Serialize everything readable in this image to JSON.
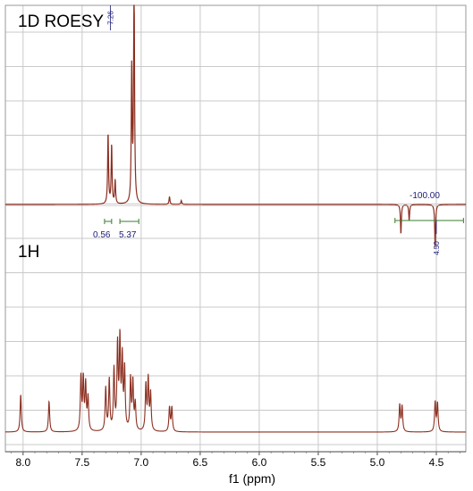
{
  "chart_data": [
    {
      "type": "line",
      "title": "1D ROESY",
      "xlabel": "f1 (ppm)",
      "x_range": [
        8.15,
        4.25
      ],
      "x_ticks": [
        "8.0",
        "7.5",
        "7.0",
        "6.5",
        "6.0",
        "5.5",
        "5.0",
        "4.5"
      ],
      "x_reversed": true,
      "grid": true,
      "peaks": [
        {
          "ppm": 7.28,
          "height": 0.36
        },
        {
          "ppm": 7.25,
          "height": 0.3
        },
        {
          "ppm": 7.22,
          "height": 0.12
        },
        {
          "ppm": 7.08,
          "height": 0.68
        },
        {
          "ppm": 7.06,
          "height": 1.2
        },
        {
          "ppm": 6.76,
          "height": 0.04
        },
        {
          "ppm": 6.66,
          "height": 0.02
        },
        {
          "ppm": 4.8,
          "height": -0.15
        },
        {
          "ppm": 4.73,
          "height": -0.08
        },
        {
          "ppm": 4.51,
          "height": -0.22
        }
      ],
      "peak_labels": [
        {
          "ppm": 7.26,
          "text": "7.26"
        },
        {
          "ppm": 4.5,
          "text": "4.50"
        }
      ],
      "integrals": [
        {
          "ppm": 7.28,
          "text": "0.56"
        },
        {
          "ppm": 7.1,
          "text": "5.37"
        },
        {
          "ppm": 4.55,
          "text": "-100.00"
        }
      ]
    },
    {
      "type": "line",
      "title": "1H",
      "xlabel": "f1 (ppm)",
      "peaks": [
        {
          "ppm": 8.02,
          "height": 0.28
        },
        {
          "ppm": 7.78,
          "height": 0.23
        },
        {
          "ppm": 7.51,
          "height": 0.4
        },
        {
          "ppm": 7.49,
          "height": 0.38
        },
        {
          "ppm": 7.47,
          "height": 0.34
        },
        {
          "ppm": 7.45,
          "height": 0.25
        },
        {
          "ppm": 7.3,
          "height": 0.32
        },
        {
          "ppm": 7.27,
          "height": 0.38
        },
        {
          "ppm": 7.23,
          "height": 0.45
        },
        {
          "ppm": 7.2,
          "height": 0.62
        },
        {
          "ppm": 7.18,
          "height": 0.66
        },
        {
          "ppm": 7.16,
          "height": 0.52
        },
        {
          "ppm": 7.14,
          "height": 0.45
        },
        {
          "ppm": 7.09,
          "height": 0.38
        },
        {
          "ppm": 7.07,
          "height": 0.36
        },
        {
          "ppm": 7.05,
          "height": 0.2
        },
        {
          "ppm": 6.96,
          "height": 0.34
        },
        {
          "ppm": 6.94,
          "height": 0.38
        },
        {
          "ppm": 6.92,
          "height": 0.28
        },
        {
          "ppm": 6.76,
          "height": 0.18
        },
        {
          "ppm": 6.74,
          "height": 0.18
        },
        {
          "ppm": 4.81,
          "height": 0.2
        },
        {
          "ppm": 4.79,
          "height": 0.19
        },
        {
          "ppm": 4.51,
          "height": 0.22
        },
        {
          "ppm": 4.49,
          "height": 0.21
        }
      ]
    }
  ],
  "colors": {
    "trace": "#8b2e1f",
    "grid": "#c9c9c9",
    "annotation": "#1b1b7a",
    "integral_bar": "#3a7d2c"
  }
}
